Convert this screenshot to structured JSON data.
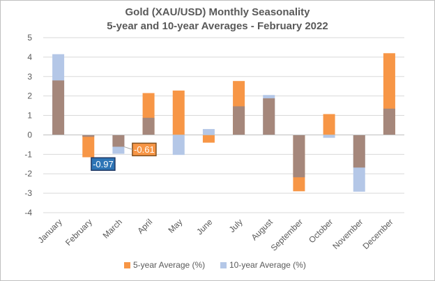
{
  "chart_data": {
    "type": "bar",
    "title": "Gold (XAU/USD) Monthly Seasonality",
    "subtitle": "5-year and 10-year Averages - February 2022",
    "categories": [
      "January",
      "February",
      "March",
      "April",
      "May",
      "June",
      "July",
      "August",
      "September",
      "October",
      "November",
      "December"
    ],
    "series": [
      {
        "name": "5-year Average (%)",
        "color": "#f79646",
        "values": [
          2.8,
          -1.15,
          -0.61,
          2.15,
          2.28,
          -0.4,
          2.77,
          1.88,
          -2.9,
          1.07,
          -1.68,
          4.2
        ]
      },
      {
        "name": "10-year Average (%)",
        "color": "#b4c7e7",
        "values": [
          4.15,
          -0.1,
          -0.97,
          0.88,
          -1.03,
          0.3,
          1.47,
          2.05,
          -2.18,
          -0.15,
          -2.92,
          1.35
        ]
      }
    ],
    "overlap_color": "#a5877b",
    "ylim": [
      -4,
      5
    ],
    "yticks": [
      -4,
      -3,
      -2,
      -1,
      0,
      1,
      2,
      3,
      4,
      5
    ],
    "grid": true,
    "legend_position": "bottom",
    "annotations": [
      {
        "label": "-0.61",
        "category": "March",
        "series": "5-year Average (%)",
        "color": "#f79646",
        "border": "#7f4f1f"
      },
      {
        "label": "-0.97",
        "category": "March",
        "series": "10-year Average (%)",
        "color": "#2e75b6",
        "border": "#1f3864"
      }
    ]
  }
}
